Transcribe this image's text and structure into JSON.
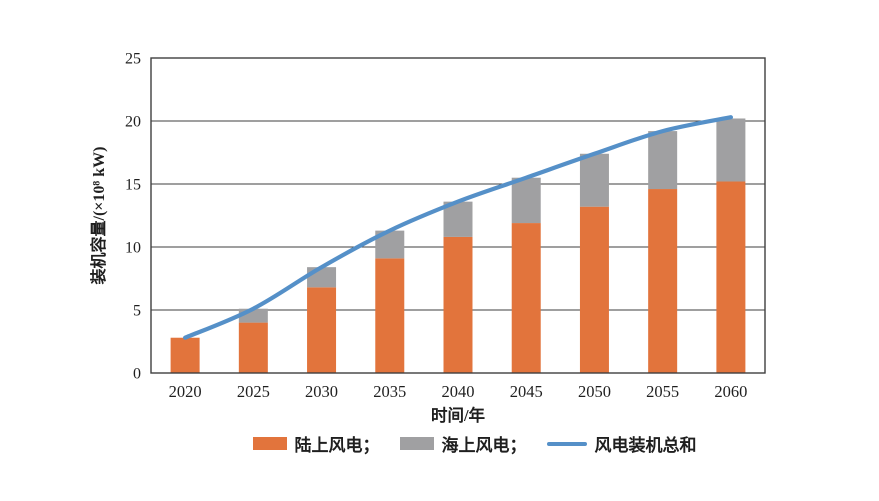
{
  "chart_data": {
    "type": "bar",
    "stacked": true,
    "title": "",
    "xlabel": "时间/年",
    "ylabel": "装机容量/(×10⁸ kW)",
    "categories": [
      "2020",
      "2025",
      "2030",
      "2035",
      "2040",
      "2045",
      "2050",
      "2055",
      "2060"
    ],
    "series": [
      {
        "key": "onshore",
        "name": "陆上风电",
        "type": "bar",
        "color": "#E2743C",
        "values": [
          2.8,
          4.0,
          6.8,
          9.1,
          10.8,
          11.9,
          13.2,
          14.6,
          15.2
        ]
      },
      {
        "key": "offshore",
        "name": "海上风电",
        "type": "bar",
        "color": "#A0A0A2",
        "values": [
          0,
          1.1,
          1.6,
          2.2,
          2.8,
          3.6,
          4.2,
          4.6,
          5.0
        ]
      },
      {
        "key": "total",
        "name": "风电装机总和",
        "type": "line",
        "color": "#5590C8",
        "values": [
          2.8,
          5.1,
          8.4,
          11.3,
          13.6,
          15.5,
          17.4,
          19.2,
          20.3
        ]
      }
    ],
    "ylim": [
      0,
      25
    ],
    "yticks": [
      0,
      5,
      10,
      15,
      20,
      25
    ],
    "grid": "horizontal",
    "grid_color": "#3f3f3f",
    "frame_color": "#3f3f3f",
    "text_color": "#1f1f1f",
    "legend_position": "bottom",
    "legend": [
      {
        "label": "陆上风电；",
        "series_index": 0,
        "swatch": "bar"
      },
      {
        "label": "海上风电；",
        "series_index": 1,
        "swatch": "bar"
      },
      {
        "label": "风电装机总和",
        "series_index": 2,
        "swatch": "line"
      }
    ]
  }
}
